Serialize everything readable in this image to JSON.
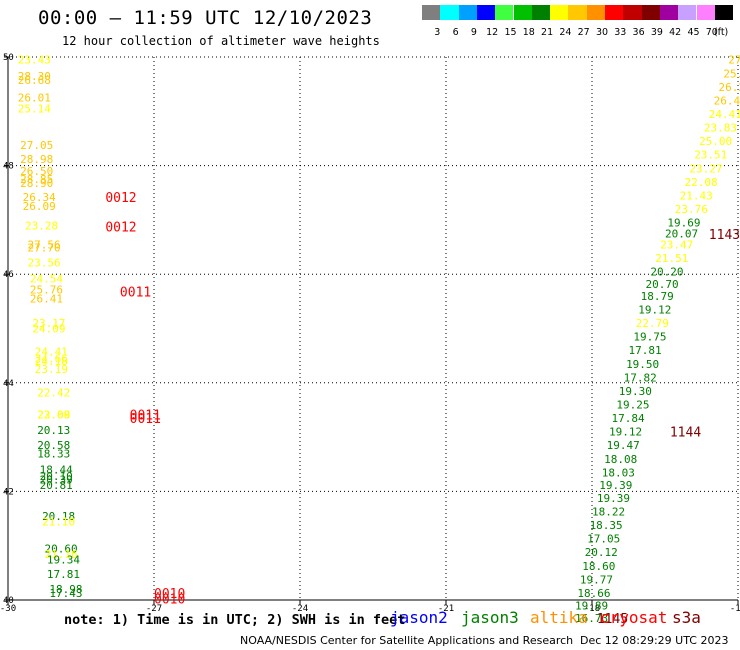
{
  "header": {
    "title": "00:00 – 11:59 UTC 12/10/2023",
    "subtitle": "12 hour collection of altimeter wave heights"
  },
  "legend": {
    "unit": "(ft)",
    "bins": [
      {
        "label": "3",
        "color": "#7f7f7f"
      },
      {
        "label": "6",
        "color": "#00ffff"
      },
      {
        "label": "9",
        "color": "#00a0ff"
      },
      {
        "label": "12",
        "color": "#0000ff"
      },
      {
        "label": "15",
        "color": "#40ff40"
      },
      {
        "label": "18",
        "color": "#00c000"
      },
      {
        "label": "21",
        "color": "#008000"
      },
      {
        "label": "24",
        "color": "#ffff00"
      },
      {
        "label": "27",
        "color": "#ffc800"
      },
      {
        "label": "30",
        "color": "#ff9000"
      },
      {
        "label": "33",
        "color": "#ff0000"
      },
      {
        "label": "36",
        "color": "#c00000"
      },
      {
        "label": "39",
        "color": "#800000"
      },
      {
        "label": "42",
        "color": "#a000a0"
      },
      {
        "label": "45",
        "color": "#c8a0ff"
      },
      {
        "label": "70",
        "color": "#ff80ff"
      },
      {
        "label": "",
        "color": "#000000"
      }
    ]
  },
  "note": "note: 1) Time is in UTC; 2) SWH is in feet",
  "satellites": [
    {
      "name": "jason2",
      "color": "#0000ff"
    },
    {
      "name": "jason3",
      "color": "#008000"
    },
    {
      "name": "altika",
      "color": "#ff9000"
    },
    {
      "name": "cryosat",
      "color": "#ff0000"
    },
    {
      "name": "s3a",
      "color": "#800000"
    }
  ],
  "footer": {
    "credit": "NOAA/NESDIS Center for Satellite Applications and Research",
    "date": "Dec 12 08:29:29 UTC 2023"
  },
  "chart_data": {
    "type": "scatter",
    "title": "00:00 – 11:59 UTC 12/10/2023",
    "subtitle": "12 hour collection of altimeter wave heights",
    "xlim": [
      -30,
      -15
    ],
    "ylim": [
      40,
      50
    ],
    "xticks": [
      -30,
      -27,
      -24,
      -21,
      -18,
      -15
    ],
    "yticks": [
      40,
      42,
      44,
      46,
      48,
      50
    ],
    "grid": true,
    "colors": {
      "c18": "#008000",
      "c21": "#ffff00",
      "c24": "#ffc800",
      "c27": "#ff9000",
      "cry": "#ff0000",
      "s3a": "#800000"
    },
    "points": [
      {
        "x": -29.8,
        "y": 49.95,
        "v": "23.43",
        "c": "c21"
      },
      {
        "x": -29.8,
        "y": 49.65,
        "v": "28.30",
        "c": "c24"
      },
      {
        "x": -29.8,
        "y": 49.58,
        "v": "26.68",
        "c": "c24"
      },
      {
        "x": -29.8,
        "y": 49.25,
        "v": "26.01",
        "c": "c24"
      },
      {
        "x": -29.8,
        "y": 49.05,
        "v": "25.14",
        "c": "c21"
      },
      {
        "x": -29.75,
        "y": 48.38,
        "v": "27.05",
        "c": "c24"
      },
      {
        "x": -29.75,
        "y": 48.12,
        "v": "28.98",
        "c": "c24"
      },
      {
        "x": -29.75,
        "y": 47.9,
        "v": "26.50",
        "c": "c24"
      },
      {
        "x": -29.75,
        "y": 47.75,
        "v": "28.85",
        "c": "c24"
      },
      {
        "x": -29.75,
        "y": 47.68,
        "v": "28.90",
        "c": "c24"
      },
      {
        "x": -29.7,
        "y": 47.42,
        "v": "26.34",
        "c": "c24"
      },
      {
        "x": -29.7,
        "y": 47.26,
        "v": "26.09",
        "c": "c24"
      },
      {
        "x": -29.65,
        "y": 46.9,
        "v": "23.28",
        "c": "c21"
      },
      {
        "x": -29.6,
        "y": 46.55,
        "v": "27.56",
        "c": "c24"
      },
      {
        "x": -29.6,
        "y": 46.49,
        "v": "27.70",
        "c": "c24"
      },
      {
        "x": -29.6,
        "y": 46.22,
        "v": "23.56",
        "c": "c21"
      },
      {
        "x": -29.55,
        "y": 45.92,
        "v": "24.54",
        "c": "c21"
      },
      {
        "x": -29.55,
        "y": 45.72,
        "v": "25.76",
        "c": "c24"
      },
      {
        "x": -29.55,
        "y": 45.55,
        "v": "26.41",
        "c": "c24"
      },
      {
        "x": -29.5,
        "y": 45.1,
        "v": "23.17",
        "c": "c21"
      },
      {
        "x": -29.5,
        "y": 45.0,
        "v": "24.09",
        "c": "c21"
      },
      {
        "x": -29.45,
        "y": 44.58,
        "v": "24.41",
        "c": "c21"
      },
      {
        "x": -29.45,
        "y": 44.45,
        "v": "24.66",
        "c": "c21"
      },
      {
        "x": -29.45,
        "y": 44.4,
        "v": "24.18",
        "c": "c21"
      },
      {
        "x": -29.45,
        "y": 44.25,
        "v": "23.19",
        "c": "c21"
      },
      {
        "x": -29.4,
        "y": 43.82,
        "v": "22.42",
        "c": "c21"
      },
      {
        "x": -29.4,
        "y": 43.42,
        "v": "22.69",
        "c": "c21"
      },
      {
        "x": -29.4,
        "y": 43.42,
        "v": "23.08",
        "c": "c21"
      },
      {
        "x": -29.4,
        "y": 43.13,
        "v": "20.13",
        "c": "c18"
      },
      {
        "x": -29.4,
        "y": 42.85,
        "v": "20.58",
        "c": "c18"
      },
      {
        "x": -29.4,
        "y": 42.7,
        "v": "18.33",
        "c": "c18"
      },
      {
        "x": -29.35,
        "y": 42.4,
        "v": "18.44",
        "c": "c18"
      },
      {
        "x": -29.35,
        "y": 42.28,
        "v": "20.10",
        "c": "c18"
      },
      {
        "x": -29.35,
        "y": 42.22,
        "v": "20.39",
        "c": "c18"
      },
      {
        "x": -29.35,
        "y": 42.12,
        "v": "20.81",
        "c": "c18"
      },
      {
        "x": -29.3,
        "y": 41.55,
        "v": "20.18",
        "c": "c18"
      },
      {
        "x": -29.3,
        "y": 41.45,
        "v": "21.10",
        "c": "c21"
      },
      {
        "x": -29.25,
        "y": 40.95,
        "v": "20.60",
        "c": "c18"
      },
      {
        "x": -29.25,
        "y": 40.85,
        "v": "21.16",
        "c": "c21"
      },
      {
        "x": -29.2,
        "y": 40.75,
        "v": "19.34",
        "c": "c18"
      },
      {
        "x": -29.2,
        "y": 40.48,
        "v": "17.81",
        "c": "c18"
      },
      {
        "x": -29.15,
        "y": 40.2,
        "v": "18.98",
        "c": "c18"
      },
      {
        "x": -29.15,
        "y": 40.13,
        "v": "17.43",
        "c": "c18"
      },
      {
        "x": -15.2,
        "y": 49.95,
        "v": "27.87",
        "c": "c24"
      },
      {
        "x": -15.3,
        "y": 49.7,
        "v": "25.91",
        "c": "c24"
      },
      {
        "x": -15.4,
        "y": 49.45,
        "v": "26.27",
        "c": "c24"
      },
      {
        "x": -15.5,
        "y": 49.2,
        "v": "26.42",
        "c": "c24"
      },
      {
        "x": -15.6,
        "y": 48.95,
        "v": "24.41",
        "c": "c21"
      },
      {
        "x": -15.7,
        "y": 48.7,
        "v": "23.83",
        "c": "c21"
      },
      {
        "x": -15.8,
        "y": 48.45,
        "v": "25.00",
        "c": "c21"
      },
      {
        "x": -15.9,
        "y": 48.2,
        "v": "23.51",
        "c": "c21"
      },
      {
        "x": -16.0,
        "y": 47.95,
        "v": "23.27",
        "c": "c21"
      },
      {
        "x": -16.1,
        "y": 47.7,
        "v": "22.08",
        "c": "c21"
      },
      {
        "x": -16.2,
        "y": 47.45,
        "v": "21.43",
        "c": "c21"
      },
      {
        "x": -16.3,
        "y": 47.2,
        "v": "23.76",
        "c": "c21"
      },
      {
        "x": -16.45,
        "y": 46.95,
        "v": "19.69",
        "c": "c18"
      },
      {
        "x": -16.5,
        "y": 46.75,
        "v": "20.07",
        "c": "c18"
      },
      {
        "x": -16.6,
        "y": 46.55,
        "v": "23.47",
        "c": "c21"
      },
      {
        "x": -16.7,
        "y": 46.3,
        "v": "21.51",
        "c": "c21"
      },
      {
        "x": -16.8,
        "y": 46.05,
        "v": "20.20",
        "c": "c18"
      },
      {
        "x": -16.9,
        "y": 45.82,
        "v": "20.70",
        "c": "c18"
      },
      {
        "x": -17.0,
        "y": 45.6,
        "v": "18.79",
        "c": "c18"
      },
      {
        "x": -17.05,
        "y": 45.35,
        "v": "19.12",
        "c": "c18"
      },
      {
        "x": -17.1,
        "y": 45.1,
        "v": "22.79",
        "c": "c21"
      },
      {
        "x": -17.15,
        "y": 44.85,
        "v": "19.75",
        "c": "c18"
      },
      {
        "x": -17.25,
        "y": 44.6,
        "v": "17.81",
        "c": "c18"
      },
      {
        "x": -17.3,
        "y": 44.35,
        "v": "19.50",
        "c": "c18"
      },
      {
        "x": -17.35,
        "y": 44.1,
        "v": "17.82",
        "c": "c18"
      },
      {
        "x": -17.45,
        "y": 43.85,
        "v": "19.30",
        "c": "c18"
      },
      {
        "x": -17.5,
        "y": 43.6,
        "v": "19.25",
        "c": "c18"
      },
      {
        "x": -17.6,
        "y": 43.35,
        "v": "17.84",
        "c": "c18"
      },
      {
        "x": -17.65,
        "y": 43.1,
        "v": "19.12",
        "c": "c18"
      },
      {
        "x": -17.7,
        "y": 42.85,
        "v": "19.47",
        "c": "c18"
      },
      {
        "x": -17.75,
        "y": 42.6,
        "v": "18.08",
        "c": "c18"
      },
      {
        "x": -17.8,
        "y": 42.35,
        "v": "18.03",
        "c": "c18"
      },
      {
        "x": -17.85,
        "y": 42.12,
        "v": "19.39",
        "c": "c18"
      },
      {
        "x": -17.9,
        "y": 41.88,
        "v": "19.39",
        "c": "c18"
      },
      {
        "x": -18.0,
        "y": 41.63,
        "v": "18.22",
        "c": "c18"
      },
      {
        "x": -18.05,
        "y": 41.38,
        "v": "18.35",
        "c": "c18"
      },
      {
        "x": -18.1,
        "y": 41.13,
        "v": "17.05",
        "c": "c18"
      },
      {
        "x": -18.15,
        "y": 40.88,
        "v": "20.12",
        "c": "c18"
      },
      {
        "x": -18.2,
        "y": 40.63,
        "v": "18.60",
        "c": "c18"
      },
      {
        "x": -18.25,
        "y": 40.38,
        "v": "19.77",
        "c": "c18"
      },
      {
        "x": -18.3,
        "y": 40.13,
        "v": "18.66",
        "c": "c18"
      },
      {
        "x": -18.35,
        "y": 39.9,
        "v": "19.89",
        "c": "c18"
      },
      {
        "x": -18.35,
        "y": 39.67,
        "v": "16.73",
        "c": "c18"
      }
    ],
    "time_labels": [
      {
        "x": -28.0,
        "y": 47.42,
        "v": "0012",
        "c": "cry"
      },
      {
        "x": -28.0,
        "y": 46.88,
        "v": "0012",
        "c": "cry"
      },
      {
        "x": -27.7,
        "y": 45.68,
        "v": "0011",
        "c": "cry"
      },
      {
        "x": -27.5,
        "y": 43.42,
        "v": "0011",
        "c": "cry"
      },
      {
        "x": -27.5,
        "y": 43.35,
        "v": "0011",
        "c": "cry"
      },
      {
        "x": -27.0,
        "y": 40.13,
        "v": "0010",
        "c": "cry"
      },
      {
        "x": -27.0,
        "y": 40.03,
        "v": "0010",
        "c": "cry"
      },
      {
        "x": -15.6,
        "y": 46.74,
        "v": "1143",
        "c": "s3a"
      },
      {
        "x": -16.4,
        "y": 43.1,
        "v": "1144",
        "c": "s3a"
      },
      {
        "x": -17.9,
        "y": 39.67,
        "v": "1145",
        "c": "s3a"
      }
    ]
  }
}
